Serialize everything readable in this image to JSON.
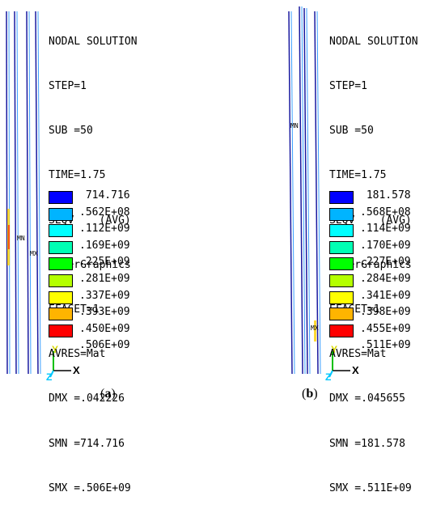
{
  "panels": [
    {
      "info_lines": [
        "NODAL SOLUTION",
        "STEP=1",
        "SUB =50",
        "TIME=1.75",
        "SEQV    (AVG)",
        "PowerGraphics",
        "EFACET=1",
        "AVRES=Mat",
        "DMX =.042226",
        "SMN =714.716",
        "SMX =.506E+09"
      ],
      "legend": [
        " 714.716",
        ".562E+08",
        ".112E+09",
        ".169E+09",
        ".225E+09",
        ".281E+09",
        ".337E+09",
        ".393E+09",
        ".450E+09",
        ".506E+09"
      ],
      "mn_label": "MN",
      "mx_label": "MX",
      "axis_y": "Y",
      "axis_x": "X",
      "axis_z": "Z",
      "caption_letter": "a"
    },
    {
      "info_lines": [
        "NODAL SOLUTION",
        "STEP=1",
        "SUB =50",
        "TIME=1.75",
        "SEQV    (AVG)",
        "PowerGraphics",
        "EFACET=1",
        "AVRES=Mat",
        "DMX =.045655",
        "SMN =181.578",
        "SMX =.511E+09"
      ],
      "legend": [
        " 181.578",
        ".568E+08",
        ".114E+09",
        ".170E+09",
        ".227E+09",
        ".284E+09",
        ".341E+09",
        ".398E+09",
        ".455E+09",
        ".511E+09"
      ],
      "mn_label": "MN",
      "mx_label": "MX",
      "axis_y": "Y",
      "axis_x": "X",
      "axis_z": "Z",
      "caption_letter": "b"
    }
  ],
  "legend_colors": [
    "#0000ff",
    "#00b4ff",
    "#00ffff",
    "#00ffb4",
    "#00ff00",
    "#b4ff00",
    "#ffff00",
    "#ffb400",
    "#ff0000"
  ],
  "colors": {
    "rail_blue": "#1a1aa0",
    "rail_light": "#3aa0ff",
    "axis_green": "#00c000",
    "axis_yellow": "#d8d800",
    "axis_cyan": "#00c8ff"
  }
}
